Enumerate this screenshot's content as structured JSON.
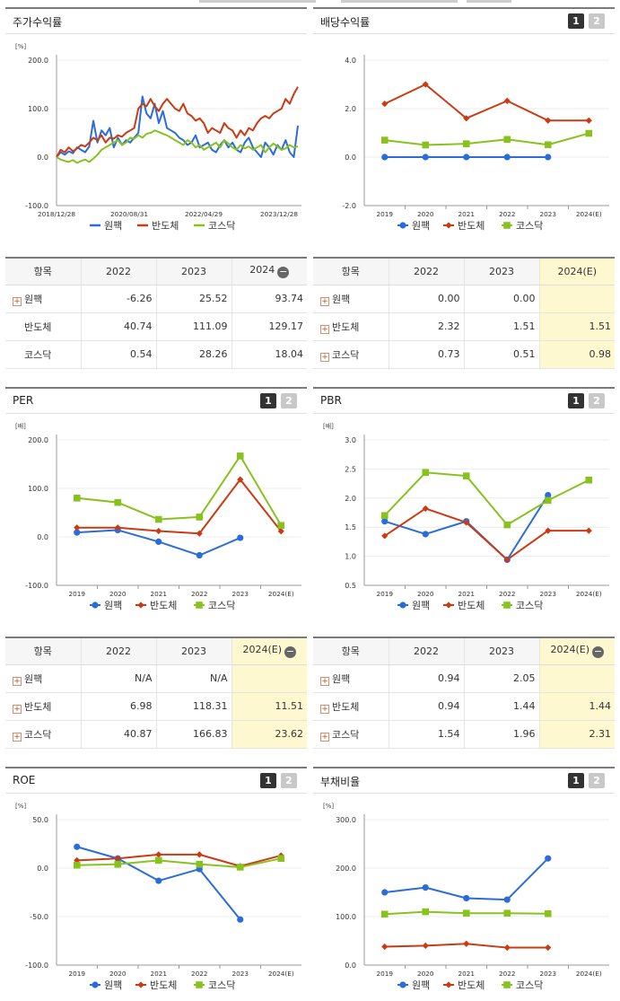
{
  "legend": [
    "원팩",
    "반도체",
    "코스닥"
  ],
  "colors": {
    "s0": "#2b6dd8",
    "s1": "#cc3a14",
    "s2": "#88c21e"
  },
  "panels": [
    {
      "id": "p0",
      "title": "주가수익률",
      "buttons": false,
      "chart_data": {
        "type": "line",
        "unit": "[%]",
        "yticks": [
          "200.0",
          "100.0",
          "0.0",
          "-100.0"
        ],
        "ylim": [
          -100,
          200
        ],
        "xticks": [
          "2018/12/28",
          "2020/08/31",
          "2022/04/29",
          "2023/12/28"
        ],
        "series": [
          {
            "name": "원팩",
            "values": [
              0,
              10,
              5,
              12,
              8,
              20,
              15,
              10,
              22,
              75,
              30,
              55,
              45,
              60,
              20,
              40,
              25,
              35,
              30,
              40,
              50,
              125,
              90,
              80,
              110,
              70,
              95,
              60,
              55,
              50,
              40,
              35,
              25,
              30,
              45,
              20,
              25,
              30,
              15,
              10,
              25,
              35,
              20,
              30,
              15,
              10,
              30,
              40,
              20,
              10,
              0,
              30,
              20,
              5,
              25,
              15,
              35,
              10,
              0,
              65
            ]
          },
          {
            "name": "반도체",
            "values": [
              0,
              15,
              10,
              20,
              12,
              18,
              25,
              22,
              30,
              40,
              35,
              45,
              30,
              40,
              38,
              45,
              42,
              50,
              55,
              60,
              100,
              110,
              105,
              120,
              105,
              95,
              110,
              120,
              110,
              100,
              95,
              110,
              90,
              85,
              75,
              80,
              70,
              50,
              60,
              55,
              50,
              70,
              60,
              55,
              40,
              55,
              45,
              60,
              55,
              70,
              80,
              85,
              80,
              90,
              95,
              100,
              120,
              110,
              130,
              145
            ]
          },
          {
            "name": "코스닥",
            "values": [
              0,
              -5,
              -8,
              -10,
              -6,
              -12,
              -8,
              -5,
              -10,
              -3,
              5,
              15,
              20,
              25,
              30,
              35,
              25,
              30,
              40,
              38,
              45,
              40,
              48,
              50,
              55,
              52,
              48,
              45,
              40,
              35,
              30,
              25,
              35,
              30,
              20,
              25,
              15,
              20,
              25,
              30,
              20,
              35,
              28,
              20,
              15,
              25,
              18,
              22,
              15,
              20,
              25,
              10,
              20,
              28,
              22,
              15,
              18,
              25,
              20,
              22
            ]
          }
        ]
      }
    },
    {
      "id": "p1",
      "title": "배당수익률",
      "buttons": true,
      "chart_data": {
        "type": "line",
        "yticks": [
          "4.0",
          "2.0",
          "0.0",
          "-2.0"
        ],
        "ylim": [
          -2,
          4
        ],
        "xticks": [
          "2019",
          "2020",
          "2021",
          "2022",
          "2023",
          "2024(E)"
        ],
        "series": [
          {
            "name": "원팩",
            "values": [
              0.0,
              0.0,
              0.0,
              0.0,
              0.0,
              null
            ]
          },
          {
            "name": "반도체",
            "values": [
              2.2,
              3.0,
              1.6,
              2.32,
              1.51,
              1.51
            ]
          },
          {
            "name": "코스닥",
            "values": [
              0.7,
              0.5,
              0.55,
              0.73,
              0.51,
              0.98
            ]
          }
        ]
      }
    },
    {
      "id": "p2",
      "title": "PER",
      "buttons": true,
      "chart_data": {
        "type": "line",
        "unit": "[배]",
        "yticks": [
          "200.0",
          "100.0",
          "0.0",
          "-100.0"
        ],
        "ylim": [
          -100,
          200
        ],
        "xticks": [
          "2019",
          "2020",
          "2021",
          "2022",
          "2023",
          "2024(E)"
        ],
        "series": [
          {
            "name": "원팩",
            "values": [
              9,
              14,
              -10,
              -38,
              -2,
              null
            ]
          },
          {
            "name": "반도체",
            "values": [
              19,
              19,
              12,
              6.98,
              118.31,
              11.51
            ]
          },
          {
            "name": "코스닥",
            "values": [
              80,
              71,
              36,
              40.87,
              166.83,
              23.62
            ]
          }
        ]
      }
    },
    {
      "id": "p3",
      "title": "PBR",
      "buttons": true,
      "chart_data": {
        "type": "line",
        "unit": "[배]",
        "yticks": [
          "3.0",
          "2.5",
          "2.0",
          "1.5",
          "1.0",
          "0.5"
        ],
        "ylim": [
          0.5,
          3.0
        ],
        "xticks": [
          "2019",
          "2020",
          "2021",
          "2022",
          "2023",
          "2024(E)"
        ],
        "series": [
          {
            "name": "원팩",
            "values": [
              1.6,
              1.38,
              1.6,
              0.94,
              2.05,
              null
            ]
          },
          {
            "name": "반도체",
            "values": [
              1.35,
              1.82,
              1.58,
              0.94,
              1.44,
              1.44
            ]
          },
          {
            "name": "코스닥",
            "values": [
              1.7,
              2.44,
              2.38,
              1.54,
              1.96,
              2.31
            ]
          }
        ]
      }
    },
    {
      "id": "p4",
      "title": "ROE",
      "buttons": true,
      "chart_data": {
        "type": "line",
        "unit": "[%]",
        "yticks": [
          "50.0",
          "0.0",
          "-50.0",
          "-100.0"
        ],
        "ylim": [
          -100,
          50
        ],
        "xticks": [
          "2019",
          "2020",
          "2021",
          "2022",
          "2023",
          "2024(E)"
        ],
        "series": [
          {
            "name": "원팩",
            "values": [
              22,
              10,
              -13,
              -1,
              -53,
              null
            ]
          },
          {
            "name": "반도체",
            "values": [
              8,
              10,
              14,
              14,
              2,
              13
            ]
          },
          {
            "name": "코스닥",
            "values": [
              3,
              4,
              8,
              4,
              1,
              10
            ]
          }
        ]
      }
    },
    {
      "id": "p5",
      "title": "부채비율",
      "buttons": true,
      "chart_data": {
        "type": "line",
        "unit": "[%]",
        "yticks": [
          "300.0",
          "200.0",
          "100.0",
          "0.0"
        ],
        "ylim": [
          0,
          300
        ],
        "xticks": [
          "2019",
          "2020",
          "2021",
          "2022",
          "2023",
          "2024(E)"
        ],
        "series": [
          {
            "name": "원팩",
            "values": [
              150,
              160,
              138,
              135,
              220,
              null
            ]
          },
          {
            "name": "반도체",
            "values": [
              38,
              40,
              44,
              36,
              36,
              null
            ]
          },
          {
            "name": "코스닥",
            "values": [
              105,
              110,
              107,
              107,
              106,
              null
            ]
          }
        ]
      }
    }
  ],
  "tables": [
    {
      "id": "t0",
      "head": [
        "항목",
        "2022",
        "2023",
        "2024"
      ],
      "minus": true,
      "hl": false,
      "rows": [
        {
          "plus": true,
          "cells": [
            "원팩",
            "-6.26",
            "25.52",
            "93.74"
          ]
        },
        {
          "plus": false,
          "cells": [
            "반도체",
            "40.74",
            "111.09",
            "129.17"
          ]
        },
        {
          "plus": false,
          "cells": [
            "코스닥",
            "0.54",
            "28.26",
            "18.04"
          ]
        }
      ]
    },
    {
      "id": "t1",
      "head": [
        "항목",
        "2022",
        "2023",
        "2024(E)"
      ],
      "minus": false,
      "hl": true,
      "rows": [
        {
          "plus": true,
          "cells": [
            "원팩",
            "0.00",
            "0.00",
            ""
          ]
        },
        {
          "plus": true,
          "cells": [
            "반도체",
            "2.32",
            "1.51",
            "1.51"
          ]
        },
        {
          "plus": true,
          "cells": [
            "코스닥",
            "0.73",
            "0.51",
            "0.98"
          ]
        }
      ]
    },
    {
      "id": "t2",
      "head": [
        "항목",
        "2022",
        "2023",
        "2024(E)"
      ],
      "minus": true,
      "hl": true,
      "rows": [
        {
          "plus": true,
          "cells": [
            "원팩",
            "N/A",
            "N/A",
            ""
          ]
        },
        {
          "plus": true,
          "cells": [
            "반도체",
            "6.98",
            "118.31",
            "11.51"
          ]
        },
        {
          "plus": true,
          "cells": [
            "코스닥",
            "40.87",
            "166.83",
            "23.62"
          ]
        }
      ]
    },
    {
      "id": "t3",
      "head": [
        "항목",
        "2022",
        "2023",
        "2024(E)"
      ],
      "minus": true,
      "hl": true,
      "rows": [
        {
          "plus": true,
          "cells": [
            "원팩",
            "0.94",
            "2.05",
            ""
          ]
        },
        {
          "plus": true,
          "cells": [
            "반도체",
            "0.94",
            "1.44",
            "1.44"
          ]
        },
        {
          "plus": true,
          "cells": [
            "코스닥",
            "1.54",
            "1.96",
            "2.31"
          ]
        }
      ]
    }
  ]
}
